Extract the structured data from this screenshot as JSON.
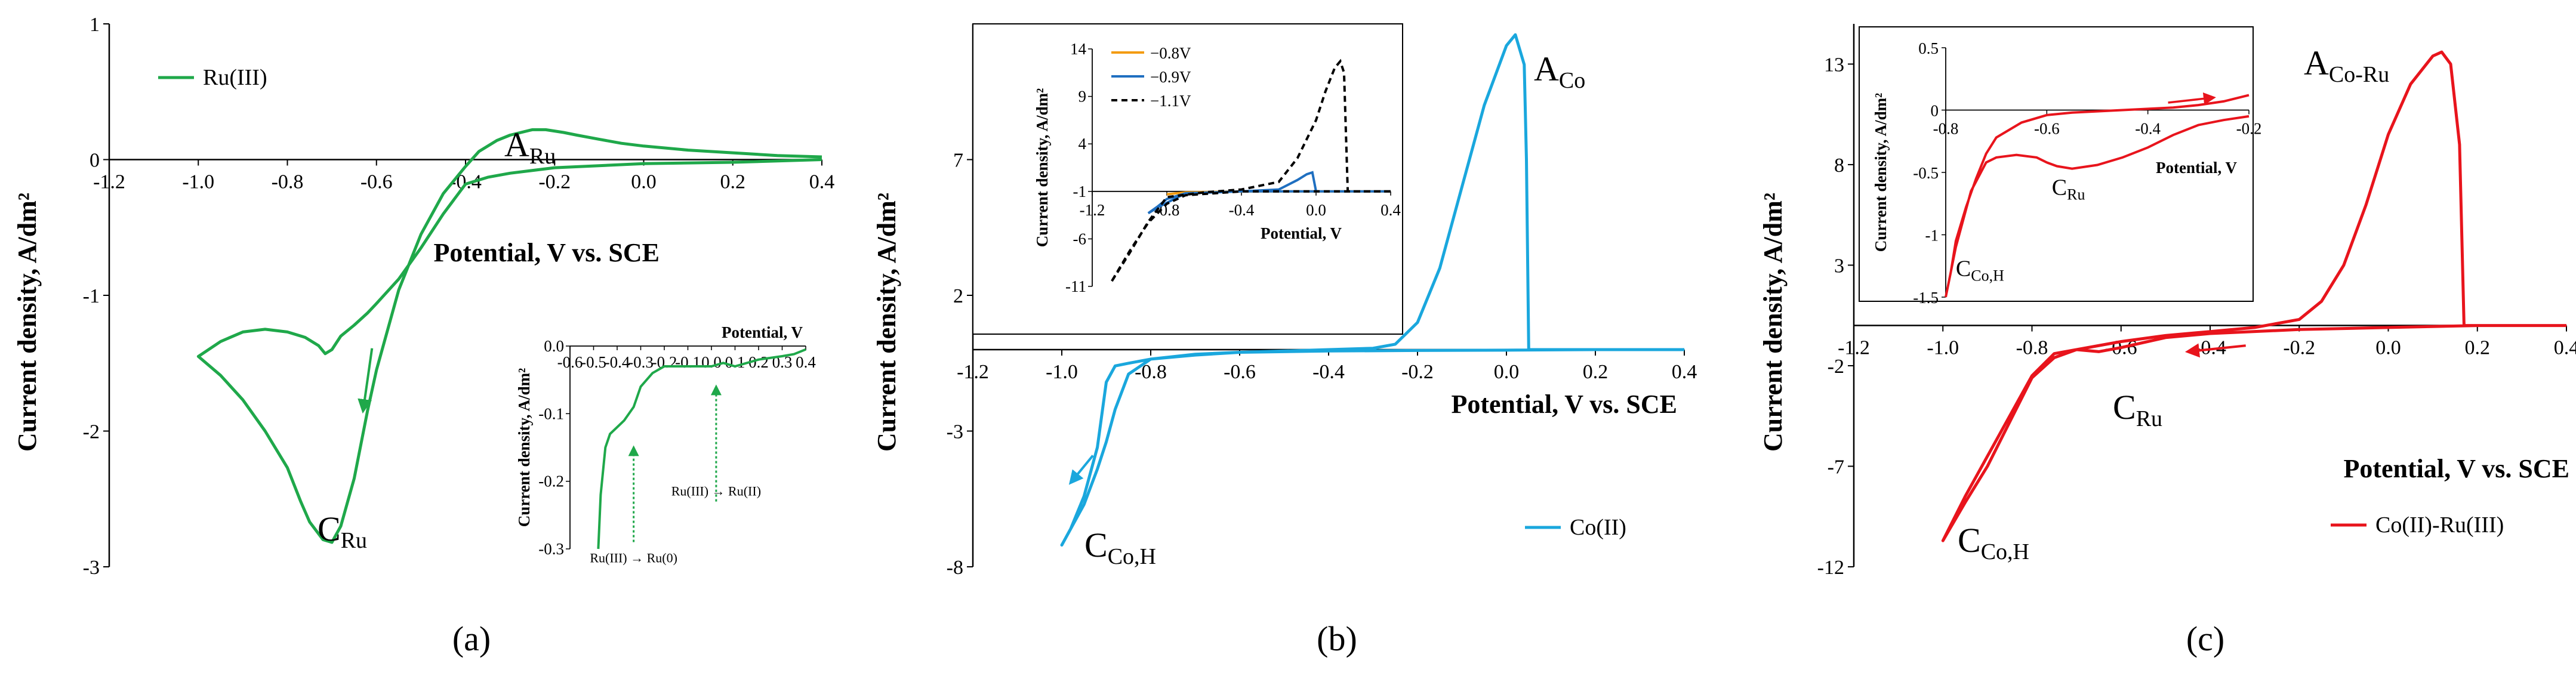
{
  "chart_data": [
    {
      "panel": "(a)",
      "type": "line",
      "xlabel": "Potential, V vs. SCE",
      "ylabel": "Current density, A/dm²",
      "xlim": [
        -1.2,
        0.4
      ],
      "ylim": [
        -3,
        1
      ],
      "xticks": [
        -1.2,
        -1.0,
        -0.8,
        -0.6,
        -0.4,
        -0.2,
        0,
        0.2,
        0.4
      ],
      "xtick_labels": [
        "-1.2",
        "-1.0",
        "-0.8",
        "-0.6",
        "-0.4",
        "-0.2",
        "0.0",
        "0.2",
        "0.4"
      ],
      "yticks": [
        -3,
        -2,
        -1,
        0,
        1
      ],
      "ytick_labels": [
        "-3",
        "-2",
        "-1",
        "0",
        "1"
      ],
      "color": "#1fa84a",
      "series": [
        {
          "name": "Ru(III)",
          "x": [
            0.4,
            0.2,
            0.0,
            -0.2,
            -0.3,
            -0.35,
            -0.4,
            -0.45,
            -0.5,
            -0.55,
            -0.6,
            -0.62,
            -0.65,
            -0.68,
            -0.7,
            -0.715,
            -0.73,
            -0.76,
            -0.8,
            -0.85,
            -0.9,
            -0.95,
            -1.0,
            -0.95,
            -0.9,
            -0.85,
            -0.8,
            -0.77,
            -0.75,
            -0.72,
            -0.7,
            -0.68,
            -0.65,
            -0.62,
            -0.6,
            -0.55,
            -0.5,
            -0.45,
            -0.4,
            -0.37,
            -0.33,
            -0.3,
            -0.25,
            -0.22,
            -0.18,
            -0.15,
            -0.1,
            -0.05,
            0.0,
            0.1,
            0.2,
            0.3,
            0.4
          ],
          "y": [
            0.0,
            -0.02,
            -0.03,
            -0.06,
            -0.1,
            -0.13,
            -0.18,
            -0.4,
            -0.65,
            -0.88,
            -1.06,
            -1.13,
            -1.22,
            -1.3,
            -1.4,
            -1.43,
            -1.37,
            -1.31,
            -1.27,
            -1.25,
            -1.27,
            -1.34,
            -1.45,
            -1.59,
            -1.77,
            -2.0,
            -2.27,
            -2.52,
            -2.67,
            -2.8,
            -2.82,
            -2.7,
            -2.35,
            -1.85,
            -1.55,
            -0.96,
            -0.55,
            -0.25,
            -0.05,
            0.06,
            0.14,
            0.18,
            0.22,
            0.22,
            0.2,
            0.18,
            0.15,
            0.12,
            0.1,
            0.07,
            0.05,
            0.03,
            0.02
          ]
        }
      ],
      "legend": "top-left",
      "annotations": [
        {
          "text": "A",
          "sub": "Ru",
          "at": [
            -0.25,
            0.29
          ]
        },
        {
          "text": "C",
          "sub": "Ru",
          "at": [
            -0.71,
            -2.86
          ]
        }
      ],
      "arrow": {
        "from": [
          -0.61,
          -1.39
        ],
        "to": [
          -0.63,
          -1.85
        ]
      },
      "inset": {
        "xlabel": "Potential, V",
        "ylabel": "Current density, A/dm²",
        "xlim": [
          -0.6,
          0.4
        ],
        "ylim": [
          -0.3,
          0.0
        ],
        "xticks": [
          -0.6,
          -0.5,
          -0.4,
          -0.3,
          -0.2,
          -0.1,
          0,
          0.1,
          0.2,
          0.3,
          0.4
        ],
        "xtick_labels": [
          "-0.6",
          "-0.5",
          "-0.4",
          "-0.3",
          "-0.2",
          "-0.1",
          "0.0",
          "0.1",
          "0.2",
          "0.3",
          "0.4"
        ],
        "yticks": [
          0.0,
          -0.1,
          -0.2,
          -0.3
        ],
        "ytick_labels": [
          "0.0",
          "-0.1",
          "-0.2",
          "-0.3"
        ],
        "x": [
          -0.48,
          -0.47,
          -0.45,
          -0.43,
          -0.4,
          -0.37,
          -0.33,
          -0.3,
          -0.25,
          -0.2,
          -0.15,
          -0.1,
          -0.05,
          0.0,
          0.05,
          0.1,
          0.2,
          0.3,
          0.35,
          0.4
        ],
        "y": [
          -0.3,
          -0.22,
          -0.15,
          -0.13,
          -0.12,
          -0.11,
          -0.09,
          -0.06,
          -0.04,
          -0.03,
          -0.03,
          -0.03,
          -0.03,
          -0.03,
          -0.025,
          -0.03,
          -0.02,
          -0.015,
          -0.012,
          -0.005
        ],
        "notes": [
          {
            "text": "Ru(III) → Ru(0)",
            "at": -0.33
          },
          {
            "text": "Ru(III) → Ru(II)",
            "at": 0.02
          }
        ]
      }
    },
    {
      "panel": "(b)",
      "type": "line",
      "xlabel": "Potential, V vs. SCE",
      "ylabel": "Current density, A/dm²",
      "xlim": [
        -1.2,
        0.4
      ],
      "ylim": [
        -8,
        12
      ],
      "xticks": [
        -1.2,
        -1.0,
        -0.8,
        -0.6,
        -0.4,
        -0.2,
        0,
        0.2,
        0.4
      ],
      "xtick_labels": [
        "-1.2",
        "-1.0",
        "-0.8",
        "-0.6",
        "-0.4",
        "-0.2",
        "0.0",
        "0.2",
        "0.4"
      ],
      "yticks": [
        -8,
        -3,
        2,
        7
      ],
      "ytick_labels": [
        "-8",
        "-3",
        "2",
        "7"
      ],
      "color": "#1aa7dd",
      "series": [
        {
          "name": "Co(II)",
          "x": [
            0.4,
            0.2,
            0.0,
            -0.2,
            -0.4,
            -0.6,
            -0.7,
            -0.8,
            -0.85,
            -0.88,
            -0.9,
            -0.92,
            -0.95,
            -1.0,
            -0.98,
            -0.95,
            -0.92,
            -0.9,
            -0.88,
            -0.85,
            -0.8,
            -0.7,
            -0.6,
            -0.5,
            -0.4,
            -0.3,
            -0.25,
            -0.2,
            -0.15,
            -0.1,
            -0.05,
            0.0,
            0.02,
            0.04,
            0.045,
            0.05,
            0.1,
            0.2,
            0.4
          ],
          "y": [
            0.0,
            0.0,
            -0.02,
            -0.03,
            -0.05,
            -0.1,
            -0.17,
            -0.35,
            -0.9,
            -2.2,
            -3.4,
            -4.4,
            -5.7,
            -7.2,
            -6.6,
            -5.4,
            -3.6,
            -1.2,
            -0.6,
            -0.5,
            -0.35,
            -0.2,
            -0.1,
            -0.05,
            0.0,
            0.05,
            0.2,
            1.0,
            3.0,
            6.0,
            9.0,
            11.2,
            11.6,
            10.5,
            7.0,
            0.0,
            0.0,
            0.0,
            0.0
          ]
        }
      ],
      "legend": "bottom-right",
      "annotations": [
        {
          "text": "A",
          "sub": "Co",
          "at": [
            0.07,
            11.5
          ]
        },
        {
          "text": "C",
          "sub": "Co,H",
          "at": [
            -0.95,
            -7.5
          ]
        }
      ],
      "arrow": {
        "from": [
          -0.93,
          -3.9
        ],
        "to": [
          -0.98,
          -4.9
        ]
      },
      "inset": {
        "xlabel": "Potential, V",
        "ylabel": "Current density, A/dm²",
        "xlim": [
          -1.2,
          0.4
        ],
        "ylim": [
          -11,
          14
        ],
        "xticks": [
          -1.2,
          -0.8,
          -0.4,
          0.0,
          0.4
        ],
        "xtick_labels": [
          "-1.2",
          "-0.8",
          "-0.4",
          "0.0",
          "0.4"
        ],
        "yticks": [
          14,
          9,
          4,
          -1,
          -6,
          -11
        ],
        "ytick_labels": [
          "14",
          "9",
          "4",
          "-1",
          "-6",
          "-11"
        ],
        "series": [
          {
            "name": "−0.8V",
            "color": "#f39c12",
            "x": [
              0.4,
              0.0,
              -0.4,
              -0.7,
              -0.8,
              -0.7,
              -0.4,
              0.0,
              0.4
            ],
            "y": [
              -1.0,
              -1.0,
              -1.0,
              -1.1,
              -1.3,
              -1.1,
              -1.0,
              -1.0,
              -1.0
            ]
          },
          {
            "name": "−0.9V",
            "color": "#1f6fc0",
            "x": [
              0.4,
              0.0,
              -0.4,
              -0.7,
              -0.8,
              -0.85,
              -0.9,
              -0.85,
              -0.8,
              -0.7,
              -0.4,
              -0.2,
              -0.1,
              -0.05,
              -0.02,
              0.0,
              0.05,
              0.4
            ],
            "y": [
              -1.0,
              -1.0,
              -1.0,
              -1.2,
              -1.8,
              -2.6,
              -3.3,
              -2.7,
              -2.2,
              -1.2,
              -1.0,
              -0.8,
              0.2,
              0.8,
              1.0,
              -1.0,
              -1.0,
              -1.0
            ]
          },
          {
            "name": "−1.1V",
            "color": "#000000",
            "dashed": true,
            "x": [
              0.4,
              0.2,
              0.0,
              -0.4,
              -0.7,
              -0.8,
              -0.9,
              -1.0,
              -1.1,
              -1.0,
              -0.9,
              -0.8,
              -0.6,
              -0.4,
              -0.2,
              -0.1,
              0.0,
              0.05,
              0.1,
              0.13,
              0.15,
              0.17,
              0.2,
              0.4
            ],
            "y": [
              -1.0,
              -1.0,
              -1.0,
              -1.0,
              -1.4,
              -2.3,
              -4.3,
              -7.3,
              -10.6,
              -7.5,
              -4.2,
              -1.6,
              -1.1,
              -0.8,
              0.0,
              2.5,
              6.5,
              9.5,
              12.0,
              12.7,
              11.5,
              -1.0,
              -1.0,
              -1.0
            ]
          }
        ]
      }
    },
    {
      "panel": "(c)",
      "type": "line",
      "xlabel": "Potential, V vs. SCE",
      "ylabel": "Current density, A/dm²",
      "xlim": [
        -1.2,
        0.4
      ],
      "ylim": [
        -12,
        15
      ],
      "xticks": [
        -1.2,
        -1.0,
        -0.8,
        -0.6,
        -0.4,
        -0.2,
        0,
        0.2,
        0.4
      ],
      "xtick_labels": [
        "-1.2",
        "-1.0",
        "-0.8",
        "-0.6",
        "-0.4",
        "-0.2",
        "0.0",
        "0.2",
        "0.4"
      ],
      "yticks": [
        -12,
        -7,
        -2,
        3,
        8,
        13
      ],
      "ytick_labels": [
        "-12",
        "-7",
        "-2",
        "3",
        "8",
        "13"
      ],
      "color": "#e8141c",
      "series": [
        {
          "name": "Co(II)-Ru(III)",
          "x": [
            0.4,
            0.2,
            0.0,
            -0.2,
            -0.4,
            -0.5,
            -0.6,
            -0.65,
            -0.7,
            -0.75,
            -0.8,
            -0.85,
            -0.9,
            -0.95,
            -1.0,
            -0.95,
            -0.9,
            -0.85,
            -0.8,
            -0.75,
            -0.7,
            -0.6,
            -0.5,
            -0.4,
            -0.3,
            -0.2,
            -0.15,
            -0.1,
            -0.05,
            0.0,
            0.05,
            0.1,
            0.12,
            0.14,
            0.16,
            0.17,
            0.2,
            0.4
          ],
          "y": [
            0.0,
            0.0,
            -0.1,
            -0.2,
            -0.4,
            -0.6,
            -1.1,
            -1.3,
            -1.2,
            -1.4,
            -2.5,
            -4.5,
            -6.5,
            -8.5,
            -10.7,
            -8.8,
            -7.0,
            -4.8,
            -2.6,
            -1.6,
            -1.2,
            -0.8,
            -0.5,
            -0.3,
            -0.1,
            0.3,
            1.2,
            3.0,
            6.0,
            9.5,
            12.0,
            13.4,
            13.6,
            13.0,
            9.0,
            0.0,
            0.0,
            0.0
          ]
        }
      ],
      "legend": "bottom-right",
      "annotations": [
        {
          "text": "A",
          "sub": "Co-Ru",
          "at": [
            -0.05,
            13.5
          ]
        },
        {
          "text": "C",
          "sub": "Ru",
          "at": [
            -0.52,
            -4.8
          ]
        },
        {
          "text": "C",
          "sub": "Co,H",
          "at": [
            -0.94,
            -11.4
          ]
        }
      ],
      "arrow": {
        "from": [
          -0.32,
          -1.0
        ],
        "to": [
          -0.45,
          -1.3
        ]
      },
      "inset": {
        "xlabel": "Potential, V",
        "ylabel": "Current density, A/dm²",
        "xlim": [
          -0.8,
          -0.2
        ],
        "ylim": [
          -1.5,
          0.5
        ],
        "xticks": [
          -0.8,
          -0.6,
          -0.4,
          -0.2
        ],
        "xtick_labels": [
          "-0.8",
          "-0.6",
          "-0.4",
          "-0.2"
        ],
        "yticks": [
          0.5,
          0,
          -0.5,
          -1,
          -1.5
        ],
        "ytick_labels": [
          "0.5",
          "0",
          "-0.5",
          "-1",
          "-1.5"
        ],
        "x": [
          -0.2,
          -0.25,
          -0.3,
          -0.35,
          -0.4,
          -0.45,
          -0.5,
          -0.55,
          -0.58,
          -0.6,
          -0.62,
          -0.66,
          -0.7,
          -0.72,
          -0.75,
          -0.78,
          -0.8,
          -0.79,
          -0.78,
          -0.76,
          -0.74,
          -0.72,
          -0.7,
          -0.65,
          -0.6,
          -0.55,
          -0.5,
          -0.45,
          -0.4,
          -0.35,
          -0.3,
          -0.25,
          -0.2
        ],
        "y": [
          -0.05,
          -0.08,
          -0.12,
          -0.2,
          -0.3,
          -0.38,
          -0.44,
          -0.47,
          -0.45,
          -0.42,
          -0.38,
          -0.36,
          -0.38,
          -0.42,
          -0.65,
          -1.1,
          -1.5,
          -1.3,
          -1.05,
          -0.78,
          -0.55,
          -0.35,
          -0.22,
          -0.1,
          -0.04,
          -0.02,
          -0.01,
          0.0,
          0.01,
          0.02,
          0.04,
          0.07,
          0.12
        ],
        "arrow": {
          "from": [
            -0.36,
            0.06
          ],
          "to": [
            -0.27,
            0.1
          ]
        },
        "annotations": [
          {
            "text": "C",
            "sub": "Ru",
            "at": [
              -0.59,
              -0.68
            ]
          },
          {
            "text": "C",
            "sub": "Co,H",
            "at": [
              -0.78,
              -1.33
            ]
          }
        ]
      }
    }
  ]
}
